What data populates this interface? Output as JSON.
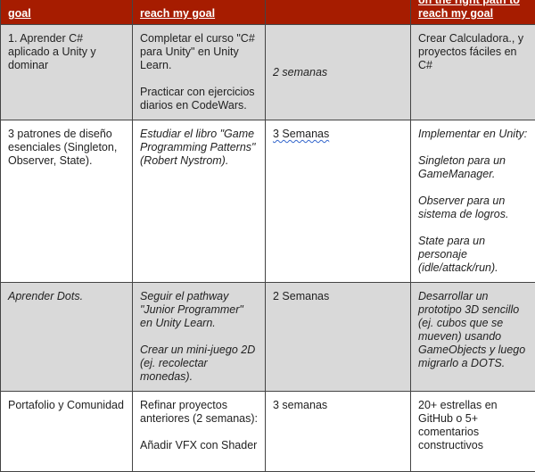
{
  "header": [
    "goal",
    "reach my goal",
    "",
    "on the right path to reach my goal"
  ],
  "colors": {
    "header_bg": "#a61c00",
    "row_alt": "#d9d9d9"
  },
  "rows": [
    {
      "goal": "1. Aprender C# aplicado a Unity y dominar",
      "actions": [
        "Completar el curso \"C# para Unity\" en Unity Learn.",
        "Practicar con ejercicios diarios en CodeWars."
      ],
      "time": "2 semanas",
      "measure": [
        "Crear Calculadora., y proyectos fáciles en C#"
      ]
    },
    {
      "goal": "3 patrones de diseño esenciales (Singleton, Observer, State).",
      "actions": [
        "Estudiar el libro \"Game Programming Patterns\" (Robert Nystrom)."
      ],
      "time": "3 Semanas",
      "measure": [
        "Implementar en Unity:",
        "Singleton para un GameManager.",
        "Observer para un sistema de logros.",
        "State para un personaje (idle/attack/run)."
      ]
    },
    {
      "goal": "Aprender Dots.",
      "actions": [
        "Seguir el pathway \"Junior Programmer\" en Unity Learn.",
        "Crear un mini-juego 2D (ej. recolectar monedas)."
      ],
      "time": "2 Semanas",
      "measure": [
        "Desarrollar un prototipo 3D sencillo (ej. cubos que se mueven) usando GameObjects y luego migrarlo a DOTS."
      ]
    },
    {
      "goal": "Portafolio y Comunidad",
      "actions": [
        "Refinar proyectos anteriores (2 semanas):",
        "Añadir VFX con Shader"
      ],
      "time": "3 semanas",
      "measure": [
        "20+ estrellas en GitHub o 5+ comentarios constructivos"
      ]
    }
  ]
}
